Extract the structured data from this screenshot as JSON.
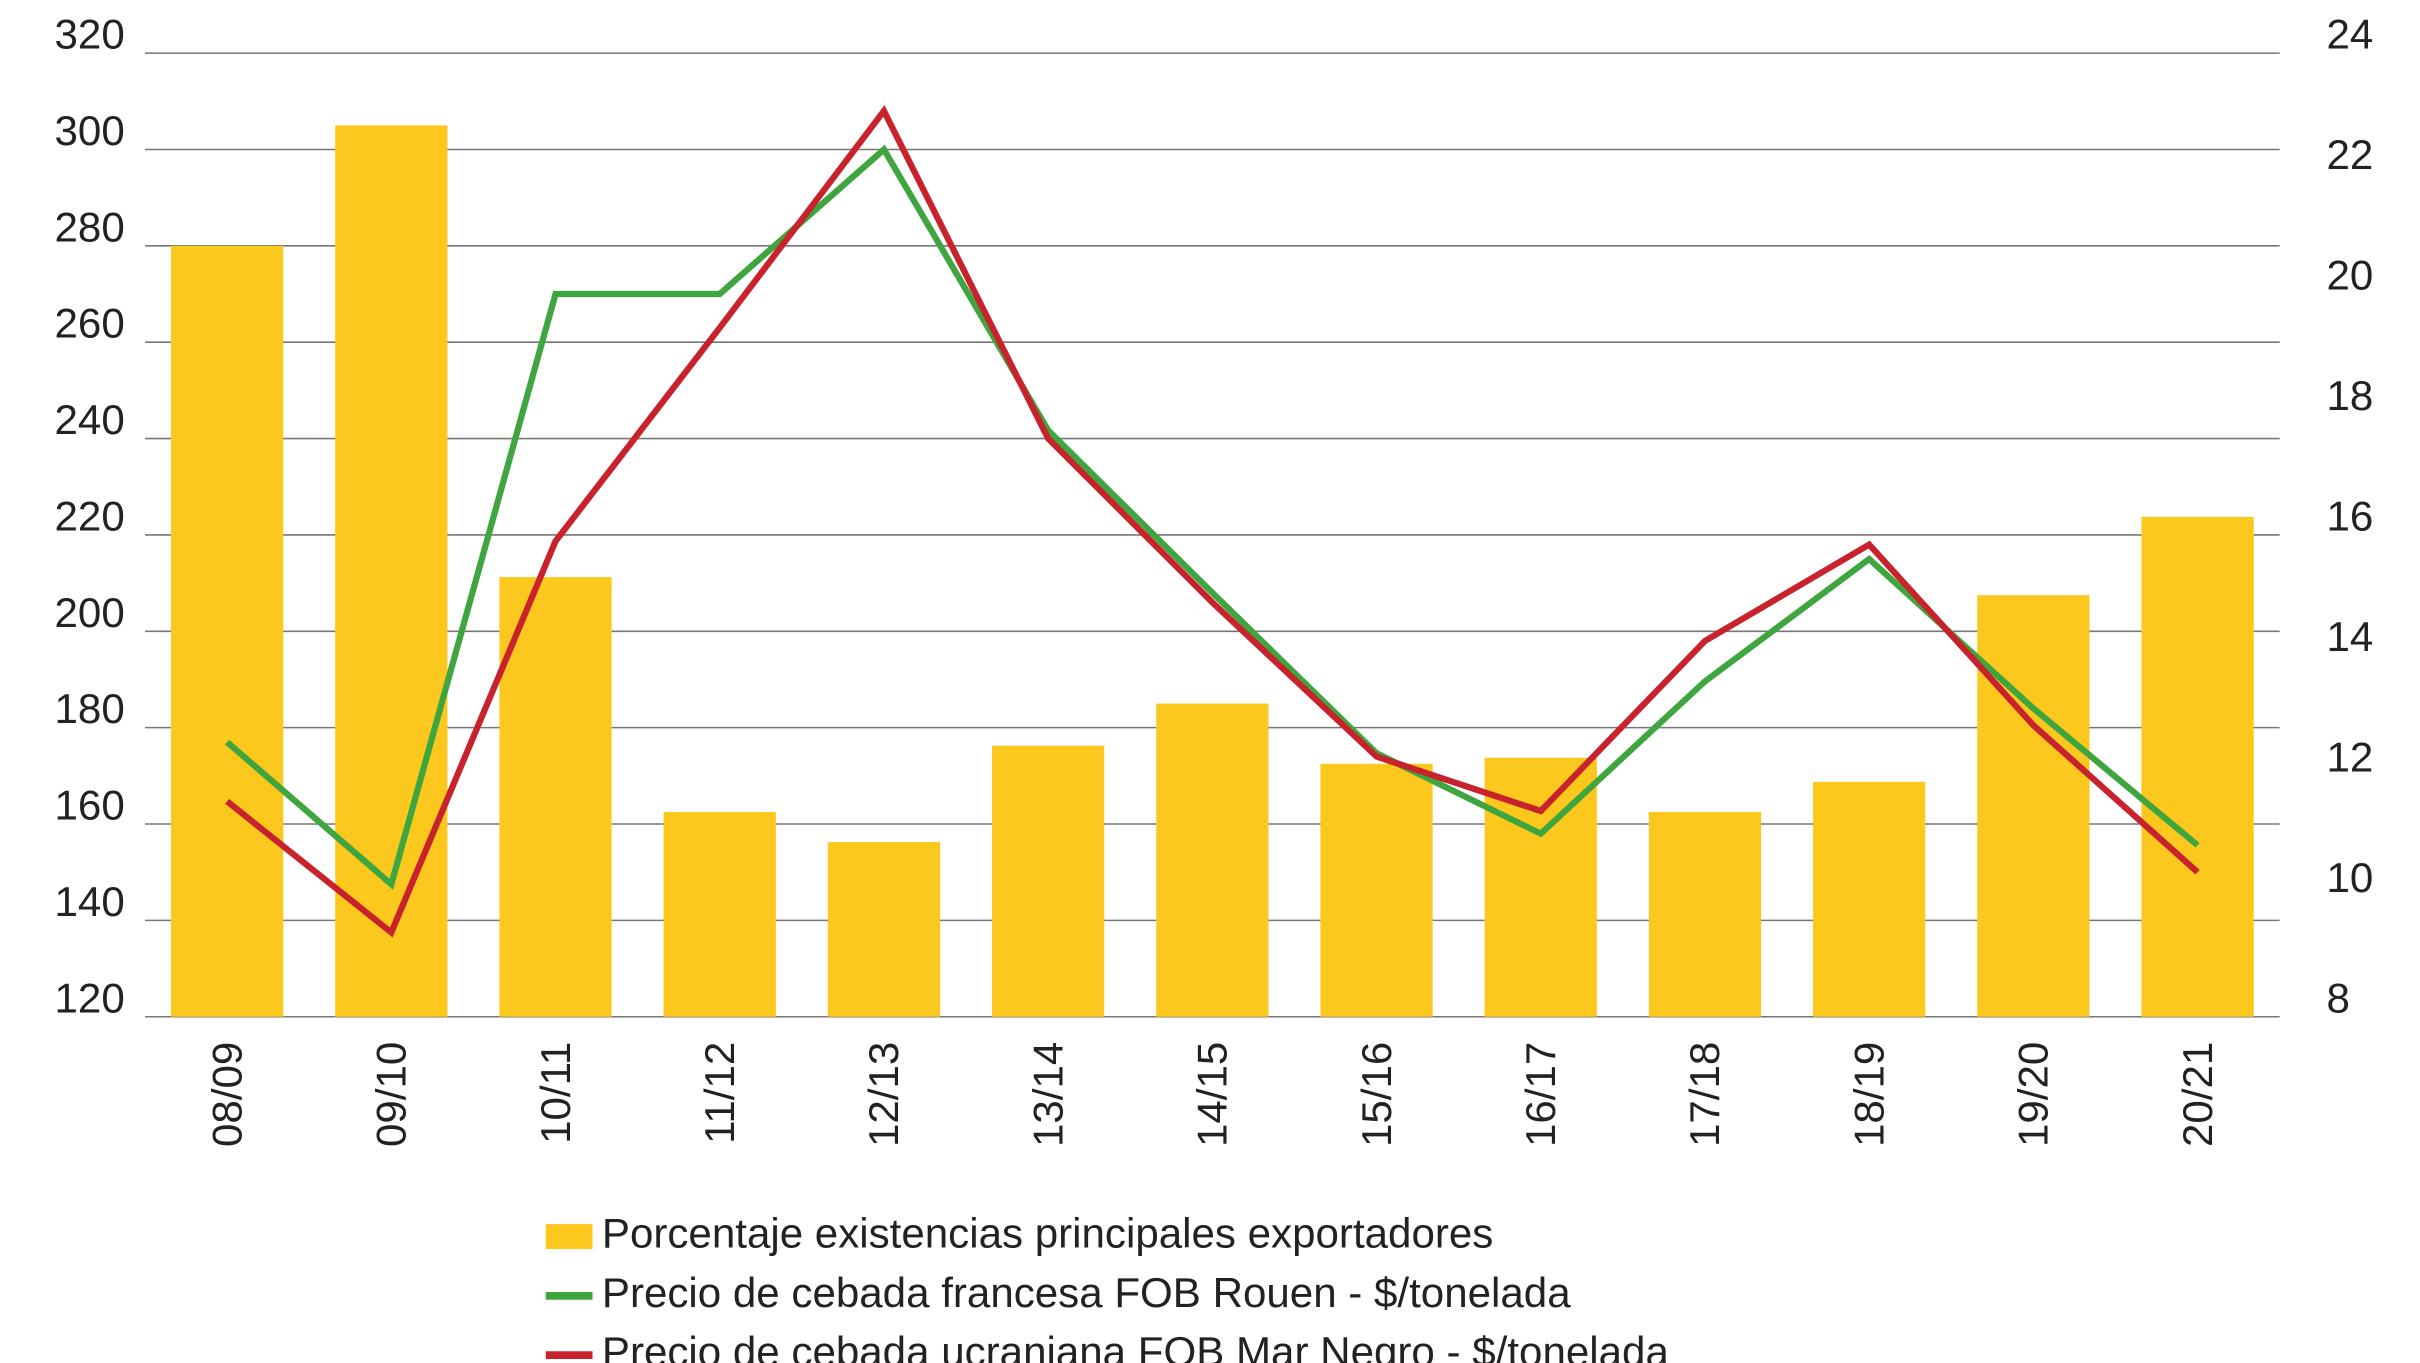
{
  "chart_data": {
    "type": "bar",
    "categories": [
      "08/09",
      "09/10",
      "10/11",
      "11/12",
      "12/13",
      "13/14",
      "14/15",
      "15/16",
      "16/17",
      "17/18",
      "18/19",
      "19/20",
      "20/21"
    ],
    "series": [
      {
        "name": "Porcentaje existencias principales exportadores",
        "color": "#fcc81e",
        "type": "bar",
        "axis": "y2",
        "values": [
          20.8,
          22.8,
          15.3,
          11.4,
          10.9,
          12.5,
          13.2,
          12.2,
          12.3,
          11.4,
          11.9,
          15.0,
          16.3
        ]
      },
      {
        "name": "Precio de cebada francesa FOB Rouen - $/tonelada",
        "color": "#3ea53f",
        "type": "line",
        "values": [
          177,
          147.5,
          270,
          270,
          300,
          241.7,
          208,
          174.7,
          158,
          189.6,
          215,
          184,
          155.6
        ]
      },
      {
        "name": "Precio de cebada ucraniana FOB Mar Negro - $/tonelada",
        "color": "#c8232c",
        "type": "line",
        "values": [
          164.7,
          137.5,
          218.7,
          263,
          308,
          240,
          206,
          174,
          162.7,
          198,
          218,
          180.5,
          150
        ]
      }
    ],
    "ylim": [
      120,
      320
    ],
    "yticks": [
      120,
      140,
      160,
      180,
      200,
      220,
      240,
      260,
      280,
      300,
      320
    ],
    "y2lim": [
      8,
      24
    ],
    "y2ticks": [
      8,
      10,
      12,
      14,
      16,
      18,
      20,
      22,
      24
    ],
    "grid": true,
    "legend": "bottom"
  }
}
